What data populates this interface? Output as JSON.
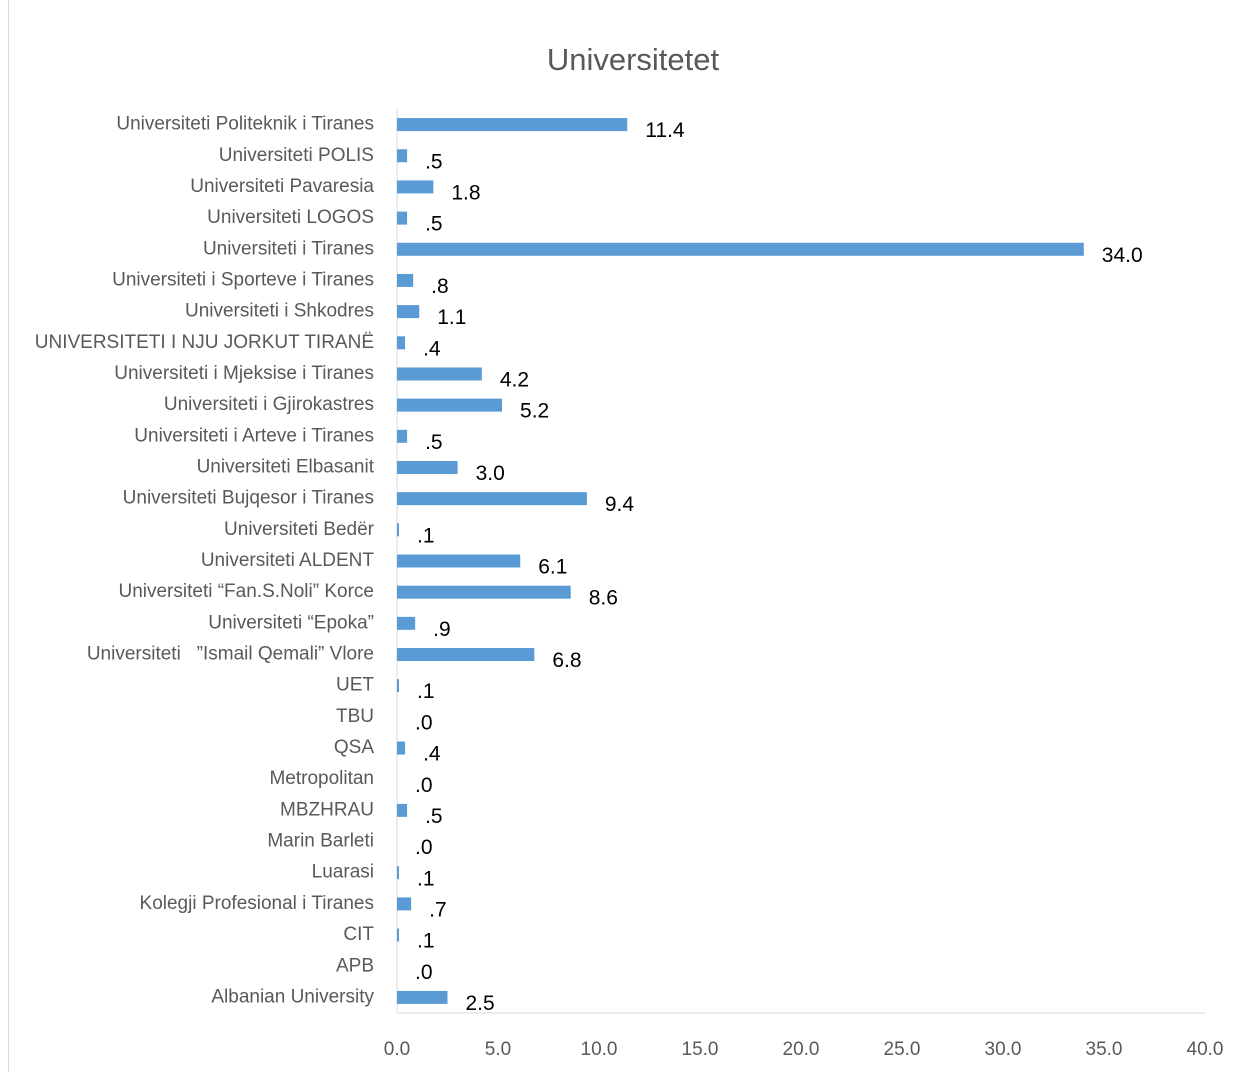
{
  "chart_data": {
    "type": "hbar",
    "title": "Universitetet",
    "categories": [
      "Universiteti Politeknik i Tiranes",
      "Universiteti POLIS",
      "Universiteti Pavaresia",
      "Universiteti LOGOS",
      "Universiteti i Tiranes",
      "Universiteti i Sporteve i Tiranes",
      "Universiteti i Shkodres",
      "UNIVERSITETI I NJU JORKUT TIRANË",
      "Universiteti i Mjeksise i Tiranes",
      "Universiteti i Gjirokastres",
      "Universiteti i Arteve i Tiranes",
      "Universiteti Elbasanit",
      "Universiteti Bujqesor i Tiranes",
      "Universiteti Bedër",
      "Universiteti ALDENT",
      "Universiteti “Fan.S.Noli” Korce",
      "Universiteti “Epoka”",
      "Universiteti   ”Ismail Qemali” Vlore",
      "UET",
      "TBU",
      "QSA",
      "Metropolitan",
      "MBZHRAU",
      "Marin Barleti",
      "Luarasi",
      "Kolegji Profesional i Tiranes",
      "CIT",
      "APB",
      "Albanian University"
    ],
    "values": [
      11.4,
      0.5,
      1.8,
      0.5,
      34.0,
      0.8,
      1.1,
      0.4,
      4.2,
      5.2,
      0.5,
      3.0,
      9.4,
      0.1,
      6.1,
      8.6,
      0.9,
      6.8,
      0.1,
      0.0,
      0.4,
      0.0,
      0.5,
      0.0,
      0.1,
      0.7,
      0.1,
      0.0,
      2.5
    ],
    "value_labels": [
      "11.4",
      ".5",
      "1.8",
      ".5",
      "34.0",
      ".8",
      "1.1",
      ".4",
      "4.2",
      "5.2",
      ".5",
      "3.0",
      "9.4",
      ".1",
      "6.1",
      "8.6",
      ".9",
      "6.8",
      ".1",
      ".0",
      ".4",
      ".0",
      ".5",
      ".0",
      ".1",
      ".7",
      ".1",
      ".0",
      "2.5"
    ],
    "color": "#5b9bd5",
    "xlim": [
      0,
      40
    ],
    "xticks": [
      {
        "value": 0,
        "label": "0.0"
      },
      {
        "value": 5,
        "label": "5.0"
      },
      {
        "value": 10,
        "label": "10.0"
      },
      {
        "value": 15,
        "label": "15.0"
      },
      {
        "value": 20,
        "label": "20.0"
      },
      {
        "value": 25,
        "label": "25.0"
      },
      {
        "value": 30,
        "label": "30.0"
      },
      {
        "value": 35,
        "label": "35.0"
      },
      {
        "value": 40,
        "label": "40.0"
      }
    ],
    "grid": false
  }
}
